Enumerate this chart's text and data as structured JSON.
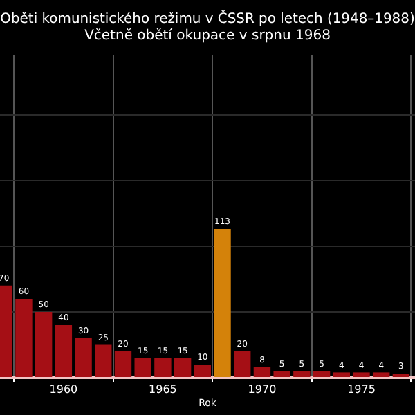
{
  "chart_data": {
    "type": "bar",
    "title": "Oběti komunistického režimu v ČSSR po letech (1948–1988)",
    "subtitle": "Včetně obětí okupace v srpnu 1968",
    "xlabel": "Rok",
    "x": [
      1957,
      1958,
      1959,
      1960,
      1961,
      1962,
      1963,
      1964,
      1965,
      1966,
      1967,
      1968,
      1969,
      1970,
      1971,
      1972,
      1973,
      1974,
      1975,
      1976,
      1977
    ],
    "values": [
      70,
      60,
      50,
      40,
      30,
      25,
      20,
      15,
      15,
      15,
      10,
      113,
      20,
      8,
      5,
      5,
      5,
      4,
      4,
      4,
      3
    ],
    "colors": [
      "#a50f15",
      "#a50f15",
      "#a50f15",
      "#a50f15",
      "#a50f15",
      "#a50f15",
      "#a50f15",
      "#a50f15",
      "#a50f15",
      "#a50f15",
      "#a50f15",
      "#d4820a",
      "#a50f15",
      "#a50f15",
      "#a50f15",
      "#a50f15",
      "#a50f15",
      "#a50f15",
      "#a50f15",
      "#a50f15",
      "#a50f15"
    ],
    "xlim": [
      1956.8,
      1977.7
    ],
    "xticks": [
      1960,
      1965,
      1970,
      1975
    ],
    "ylim": [
      0,
      245
    ],
    "yticks": [
      {
        "value": 0,
        "label": null
      },
      {
        "value": 50,
        "label": null
      },
      {
        "value": 100,
        "label": null
      },
      {
        "value": 150,
        "label": null
      },
      {
        "value": 200,
        "label": null
      }
    ],
    "grid": true,
    "tick_labels": "x",
    "data_labels": true
  }
}
